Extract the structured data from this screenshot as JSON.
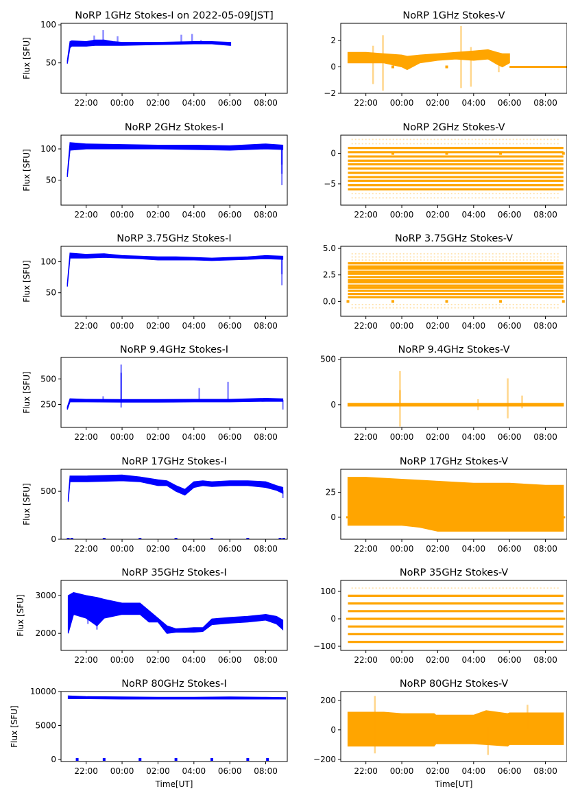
{
  "figure": {
    "colors": {
      "stokes_i": "#0000ff",
      "stokes_v": "#ffa500"
    },
    "x_axis": {
      "label": "Time[UT]",
      "range_hours": [
        20.6,
        33.2
      ],
      "tick_hours": [
        22,
        24,
        26,
        28,
        30,
        32
      ],
      "tick_labels": [
        "22:00",
        "00:00",
        "02:00",
        "04:00",
        "06:00",
        "08:00"
      ]
    },
    "y_label": "Flux [SFU]"
  },
  "chart_data": [
    {
      "type": "scatter",
      "title": "NoRP 1GHz Stokes-I on 2022-05-09[JST]",
      "color": "#0000ff",
      "ylim": [
        10,
        102
      ],
      "yticks": [
        50,
        100
      ],
      "ytick_labels": [
        "50",
        "100"
      ],
      "band": [
        [
          20.95,
          49,
          53
        ],
        [
          21.1,
          70,
          78
        ],
        [
          21.2,
          72,
          79
        ],
        [
          22,
          72,
          78
        ],
        [
          22.5,
          73,
          80
        ],
        [
          23,
          73,
          80
        ],
        [
          23.5,
          73,
          78
        ],
        [
          24,
          73,
          77
        ],
        [
          26,
          74,
          77
        ],
        [
          28,
          75,
          78
        ],
        [
          29,
          75,
          78
        ],
        [
          30,
          73,
          77
        ],
        [
          30.05,
          73,
          77
        ]
      ],
      "spikes": [
        [
          22.45,
          86
        ],
        [
          22.95,
          93
        ],
        [
          23.75,
          85
        ],
        [
          27.3,
          87
        ],
        [
          27.9,
          88
        ],
        [
          28.4,
          80
        ]
      ],
      "zeros": []
    },
    {
      "type": "scatter",
      "title": "NoRP 1GHz Stokes-V",
      "color": "#ffa500",
      "ylim": [
        -2,
        3.3
      ],
      "yticks": [
        -2,
        0,
        2
      ],
      "ytick_labels": [
        "−2",
        "0",
        "2"
      ],
      "band": [
        [
          21.0,
          0.3,
          1.1
        ],
        [
          22,
          0.3,
          1.1
        ],
        [
          23,
          0.3,
          1.0
        ],
        [
          24,
          0.0,
          0.9
        ],
        [
          24.3,
          -0.2,
          0.8
        ],
        [
          25,
          0.3,
          0.9
        ],
        [
          26,
          0.5,
          1.0
        ],
        [
          27,
          0.6,
          1.1
        ],
        [
          28,
          0.5,
          1.2
        ],
        [
          28.8,
          0.6,
          1.3
        ],
        [
          29.3,
          0.2,
          1.1
        ],
        [
          29.6,
          0.0,
          1.0
        ],
        [
          30.0,
          0.3,
          1.0
        ]
      ],
      "spikes": [
        [
          22.4,
          -1.3
        ],
        [
          22.4,
          1.6
        ],
        [
          22.95,
          2.4
        ],
        [
          22.95,
          -1.8
        ],
        [
          27.3,
          3.1
        ],
        [
          27.3,
          -1.6
        ],
        [
          27.85,
          1.5
        ],
        [
          27.85,
          -1.5
        ],
        [
          29.4,
          -0.4
        ]
      ],
      "hlines": [
        [
          30.0,
          33.2,
          0
        ]
      ],
      "zeros": [
        23.5,
        26.5
      ]
    },
    {
      "type": "scatter",
      "title": "NoRP 2GHz Stokes-I",
      "color": "#0000ff",
      "ylim": [
        10,
        122
      ],
      "yticks": [
        50,
        100
      ],
      "ytick_labels": [
        "50",
        "100"
      ],
      "band": [
        [
          20.95,
          55,
          60
        ],
        [
          21.1,
          98,
          110
        ],
        [
          22,
          100,
          108
        ],
        [
          24,
          100,
          107
        ],
        [
          26,
          100,
          106
        ],
        [
          28,
          99,
          106
        ],
        [
          30,
          98,
          105
        ],
        [
          32,
          100,
          108
        ],
        [
          32.95,
          99,
          106
        ]
      ],
      "spikes": [
        [
          32.9,
          42
        ],
        [
          32.9,
          60
        ],
        [
          32.9,
          75
        ]
      ],
      "zeros": []
    },
    {
      "type": "scatter",
      "title": "NoRP 2GHz Stokes-V",
      "color": "#ffa500",
      "ylim": [
        -8.5,
        3.0
      ],
      "yticks": [
        -5,
        0
      ],
      "ytick_labels": [
        "−5",
        "0"
      ],
      "levels": [
        -5.9,
        -5.2,
        -4.5,
        -3.9,
        -3.2,
        -2.5,
        -1.8,
        -1.2,
        -0.5,
        0.2,
        0.9
      ],
      "faint_levels": [
        -7.3,
        -6.6,
        1.6,
        2.3
      ],
      "x_extent": [
        21.0,
        33.0
      ],
      "zeros": [
        23.5,
        26.5,
        29.5,
        33.0
      ]
    },
    {
      "type": "scatter",
      "title": "NoRP 3.75GHz Stokes-I",
      "color": "#0000ff",
      "ylim": [
        12,
        125
      ],
      "yticks": [
        50,
        100
      ],
      "ytick_labels": [
        "50",
        "100"
      ],
      "band": [
        [
          20.95,
          60,
          65
        ],
        [
          21.1,
          106,
          114
        ],
        [
          22,
          106,
          112
        ],
        [
          23,
          107,
          113
        ],
        [
          24,
          106,
          110
        ],
        [
          25,
          105,
          109
        ],
        [
          26,
          103,
          108
        ],
        [
          27,
          103,
          108
        ],
        [
          28,
          103,
          107
        ],
        [
          29,
          102,
          106
        ],
        [
          30,
          103,
          107
        ],
        [
          31,
          104,
          108
        ],
        [
          32,
          105,
          110
        ],
        [
          32.95,
          104,
          109
        ]
      ],
      "spikes": [
        [
          32.9,
          62
        ],
        [
          32.9,
          80
        ]
      ],
      "zeros": []
    },
    {
      "type": "scatter",
      "title": "NoRP 3.75GHz Stokes-V",
      "color": "#ffa500",
      "ylim": [
        -1.4,
        5.2
      ],
      "yticks": [
        0.0,
        2.5,
        5.0
      ],
      "ytick_labels": [
        "0.0",
        "2.5",
        "5.0"
      ],
      "levels": [
        0.4,
        0.7,
        1.0,
        1.3,
        1.5,
        1.8,
        2.0,
        2.3,
        2.6,
        2.8,
        3.1,
        3.3,
        3.6
      ],
      "faint_levels": [
        -0.6,
        -0.3,
        3.9,
        4.2,
        4.5
      ],
      "x_extent": [
        21.0,
        33.0
      ],
      "zeros": [
        21.0,
        23.5,
        26.5,
        29.5,
        33.0
      ]
    },
    {
      "type": "scatter",
      "title": "NoRP 9.4GHz Stokes-I",
      "color": "#0000ff",
      "ylim": [
        25,
        710
      ],
      "yticks": [
        250,
        500
      ],
      "ytick_labels": [
        "250",
        "500"
      ],
      "band": [
        [
          20.95,
          200,
          225
        ],
        [
          21.1,
          275,
          305
        ],
        [
          22,
          275,
          300
        ],
        [
          24,
          272,
          298
        ],
        [
          26,
          272,
          298
        ],
        [
          28,
          275,
          300
        ],
        [
          30,
          275,
          300
        ],
        [
          32,
          280,
          310
        ],
        [
          32.95,
          280,
          305
        ]
      ],
      "spikes": [
        [
          23.95,
          560
        ],
        [
          23.95,
          640
        ],
        [
          23.95,
          220
        ],
        [
          28.3,
          410
        ],
        [
          29.9,
          470
        ],
        [
          32.95,
          200
        ],
        [
          22.95,
          330
        ]
      ],
      "zeros": []
    },
    {
      "type": "scatter",
      "title": "NoRP 9.4GHz Stokes-V",
      "color": "#ffa500",
      "ylim": [
        -250,
        520
      ],
      "yticks": [
        0,
        500
      ],
      "ytick_labels": [
        "0",
        "500"
      ],
      "band": [
        [
          21.0,
          -15,
          15
        ],
        [
          33.0,
          -15,
          15
        ]
      ],
      "spikes": [
        [
          23.9,
          370
        ],
        [
          23.9,
          -240
        ],
        [
          23.9,
          160
        ],
        [
          28.25,
          60
        ],
        [
          28.25,
          -60
        ],
        [
          29.9,
          290
        ],
        [
          29.9,
          -150
        ],
        [
          30.7,
          100
        ],
        [
          30.7,
          -40
        ]
      ],
      "zeros": []
    },
    {
      "type": "scatter",
      "title": "NoRP 17GHz Stokes-I",
      "color": "#0000ff",
      "ylim": [
        0,
        730
      ],
      "yticks": [
        0,
        500
      ],
      "ytick_labels": [
        "0",
        "500"
      ],
      "band": [
        [
          21.0,
          390,
          420
        ],
        [
          21.1,
          600,
          660
        ],
        [
          22,
          600,
          660
        ],
        [
          24,
          610,
          670
        ],
        [
          25,
          600,
          650
        ],
        [
          26,
          560,
          620
        ],
        [
          26.5,
          560,
          610
        ],
        [
          27,
          500,
          560
        ],
        [
          27.5,
          460,
          520
        ],
        [
          28,
          540,
          600
        ],
        [
          28.5,
          560,
          610
        ],
        [
          29,
          550,
          600
        ],
        [
          30,
          560,
          610
        ],
        [
          31,
          560,
          610
        ],
        [
          32,
          540,
          600
        ],
        [
          32.6,
          510,
          560
        ],
        [
          32.95,
          480,
          540
        ]
      ],
      "spikes": [
        [
          32.95,
          430
        ]
      ],
      "zeros": [
        21.0,
        21.2,
        23.0,
        25.0,
        27.0,
        29.0,
        31.0,
        32.8,
        33.0
      ]
    },
    {
      "type": "scatter",
      "title": "NoRP 17GHz Stokes-V",
      "color": "#ffa500",
      "ylim": [
        -22,
        48
      ],
      "yticks": [
        0,
        25
      ],
      "ytick_labels": [
        "0",
        "25"
      ],
      "band": [
        [
          21.0,
          -8,
          40
        ],
        [
          22,
          -8,
          40
        ],
        [
          24,
          -8,
          38
        ],
        [
          25,
          -10,
          37
        ],
        [
          26,
          -14,
          36
        ],
        [
          28,
          -14,
          34
        ],
        [
          30,
          -14,
          34
        ],
        [
          32,
          -14,
          32
        ],
        [
          33.0,
          -14,
          32
        ]
      ],
      "hlines": [
        [
          20.9,
          21.0,
          0
        ],
        [
          33.0,
          33.1,
          0
        ]
      ],
      "zeros": []
    },
    {
      "type": "scatter",
      "title": "NoRP 35GHz Stokes-I",
      "color": "#0000ff",
      "ylim": [
        1550,
        3400
      ],
      "yticks": [
        2000,
        3000
      ],
      "ytick_labels": [
        "2000",
        "3000"
      ],
      "band": [
        [
          21.0,
          2000,
          3000
        ],
        [
          21.3,
          2500,
          3080
        ],
        [
          22,
          2400,
          3000
        ],
        [
          22.6,
          2200,
          2950
        ],
        [
          23,
          2400,
          2900
        ],
        [
          24,
          2500,
          2800
        ],
        [
          25,
          2500,
          2800
        ],
        [
          25.5,
          2300,
          2600
        ],
        [
          26,
          2300,
          2400
        ],
        [
          26.5,
          2000,
          2200
        ],
        [
          27,
          2030,
          2120
        ],
        [
          28,
          2030,
          2150
        ],
        [
          28.5,
          2050,
          2150
        ],
        [
          29,
          2230,
          2380
        ],
        [
          30,
          2270,
          2420
        ],
        [
          31,
          2300,
          2450
        ],
        [
          32,
          2350,
          2500
        ],
        [
          32.6,
          2250,
          2450
        ],
        [
          32.95,
          2100,
          2350
        ]
      ],
      "spikes": [
        [
          22.6,
          2100
        ],
        [
          22.1,
          2250
        ],
        [
          21.6,
          2500
        ]
      ],
      "zeros": []
    },
    {
      "type": "scatter",
      "title": "NoRP 35GHz Stokes-V",
      "color": "#ffa500",
      "ylim": [
        -115,
        140
      ],
      "yticks": [
        -100,
        0,
        100
      ],
      "ytick_labels": [
        "−100",
        "0",
        "100"
      ],
      "levels": [
        -84,
        -56,
        -28,
        0,
        28,
        56,
        84
      ],
      "faint_levels": [
        112
      ],
      "x_extent": [
        21.0,
        33.0
      ],
      "hlines": [
        [
          20.9,
          33.1,
          0
        ]
      ],
      "zeros": []
    },
    {
      "type": "scatter",
      "title": "NoRP 80GHz Stokes-I",
      "color": "#0000ff",
      "ylim": [
        -300,
        10000
      ],
      "yticks": [
        0,
        5000,
        10000
      ],
      "ytick_labels": [
        "0",
        "5000",
        "10000"
      ],
      "band": [
        [
          21.0,
          8950,
          9350
        ],
        [
          22,
          8950,
          9250
        ],
        [
          24,
          8900,
          9200
        ],
        [
          26,
          8900,
          9150
        ],
        [
          28,
          8900,
          9150
        ],
        [
          30,
          8900,
          9200
        ],
        [
          32,
          8900,
          9150
        ],
        [
          33.1,
          8900,
          9100
        ]
      ],
      "spikes": [],
      "zeros": [
        21.5,
        23.0,
        25.0,
        27.0,
        29.0,
        31.0,
        32.1
      ]
    },
    {
      "type": "scatter",
      "title": "NoRP 80GHz Stokes-V",
      "color": "#ffa500",
      "ylim": [
        -215,
        260
      ],
      "yticks": [
        -200,
        0,
        200
      ],
      "ytick_labels": [
        "−200",
        "0",
        "200"
      ],
      "band": [
        [
          21.0,
          -110,
          120
        ],
        [
          23,
          -110,
          120
        ],
        [
          24,
          -110,
          110
        ],
        [
          25.8,
          -110,
          110
        ],
        [
          25.9,
          -95,
          100
        ],
        [
          28,
          -95,
          100
        ],
        [
          28.7,
          -100,
          130
        ],
        [
          29.9,
          -110,
          110
        ],
        [
          30,
          -100,
          115
        ],
        [
          33.0,
          -100,
          115
        ]
      ],
      "spikes": [
        [
          22.5,
          230
        ],
        [
          22.5,
          -160
        ],
        [
          28.8,
          -170
        ],
        [
          31.0,
          170
        ]
      ],
      "zeros": []
    }
  ]
}
